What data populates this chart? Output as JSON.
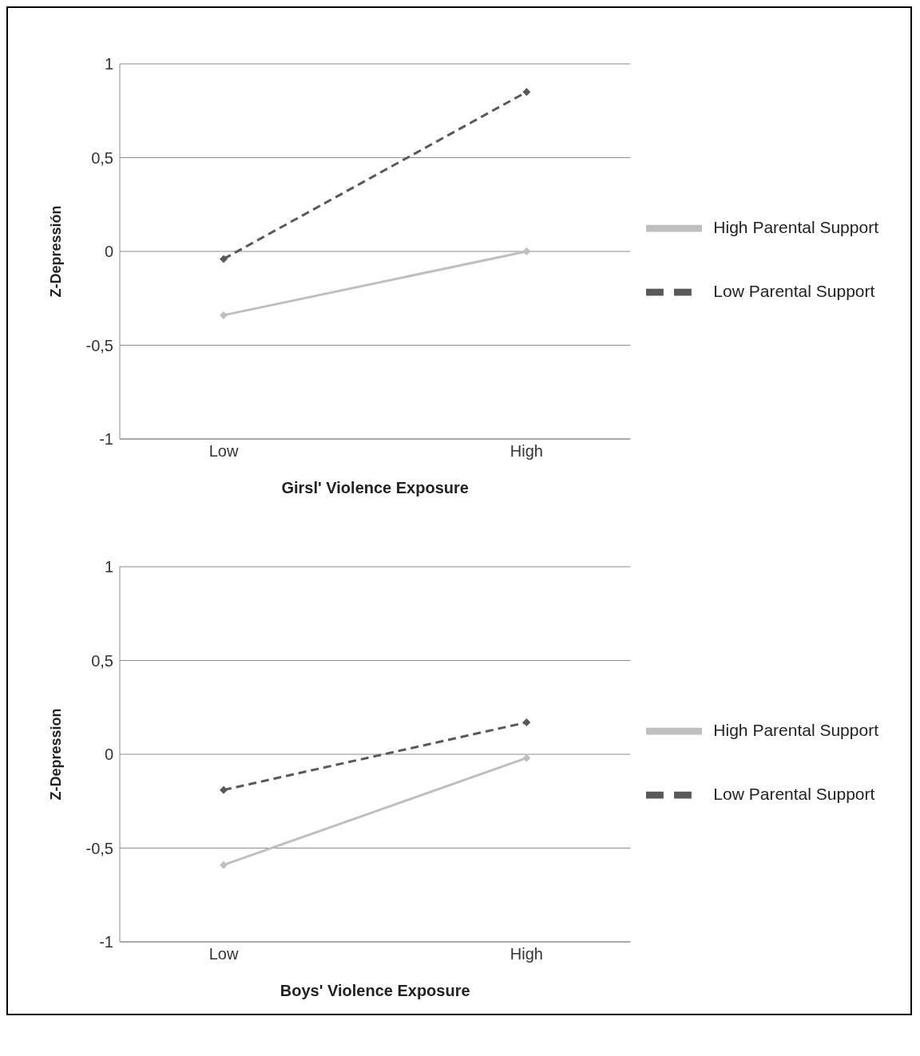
{
  "chart_data": [
    {
      "type": "line",
      "xlabel": "Girsl' Violence Exposure",
      "ylabel": "Z-Depressión",
      "categories": [
        "Low",
        "High"
      ],
      "series": [
        {
          "name": "Low Parental Support",
          "color": "#595959",
          "values": [
            -0.04,
            0.85
          ],
          "line_style": "dashed"
        },
        {
          "name": "High Parental Support",
          "color": "#bfbfbf",
          "values": [
            -0.34,
            0.0
          ],
          "line_style": "solid"
        }
      ],
      "ylim": [
        -1,
        1
      ],
      "yticks": [
        {
          "value": -1,
          "label": "-1"
        },
        {
          "value": -0.5,
          "label": "-0,5"
        },
        {
          "value": 0,
          "label": "0"
        },
        {
          "value": 0.5,
          "label": "0,5"
        },
        {
          "value": 1,
          "label": "1"
        }
      ],
      "grid": "y",
      "legend": "right",
      "marker": "diamond"
    },
    {
      "type": "line",
      "xlabel": "Boys' Violence Exposure",
      "ylabel": "Z-Depression",
      "categories": [
        "Low",
        "High"
      ],
      "series": [
        {
          "name": "Low Parental Support",
          "color": "#595959",
          "values": [
            -0.19,
            0.17
          ],
          "line_style": "dashed"
        },
        {
          "name": "High Parental Support",
          "color": "#bfbfbf",
          "values": [
            -0.59,
            -0.02
          ],
          "line_style": "solid"
        }
      ],
      "ylim": [
        -1,
        1
      ],
      "yticks": [
        {
          "value": -1,
          "label": "-1"
        },
        {
          "value": -0.5,
          "label": "-0,5"
        },
        {
          "value": 0,
          "label": "0"
        },
        {
          "value": 0.5,
          "label": "0,5"
        },
        {
          "value": 1,
          "label": "1"
        }
      ],
      "grid": "y",
      "legend": "right",
      "marker": "diamond"
    }
  ]
}
